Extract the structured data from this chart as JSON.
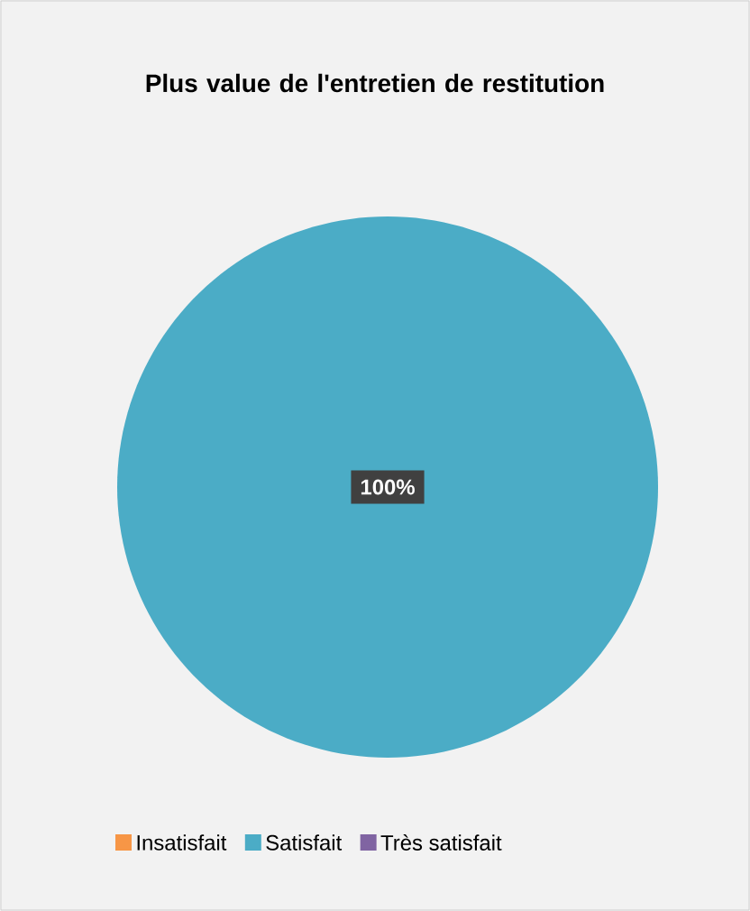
{
  "chart_data": {
    "type": "pie",
    "title": "Plus value de l'entretien de restitution",
    "categories": [
      "Insatisfait",
      "Satisfait",
      "Très satisfait"
    ],
    "values": [
      0,
      100,
      0
    ],
    "colors": [
      "#f79646",
      "#4bacc6",
      "#8064a2"
    ],
    "value_labels": [
      null,
      "100%",
      null
    ],
    "legend": "bottom"
  }
}
